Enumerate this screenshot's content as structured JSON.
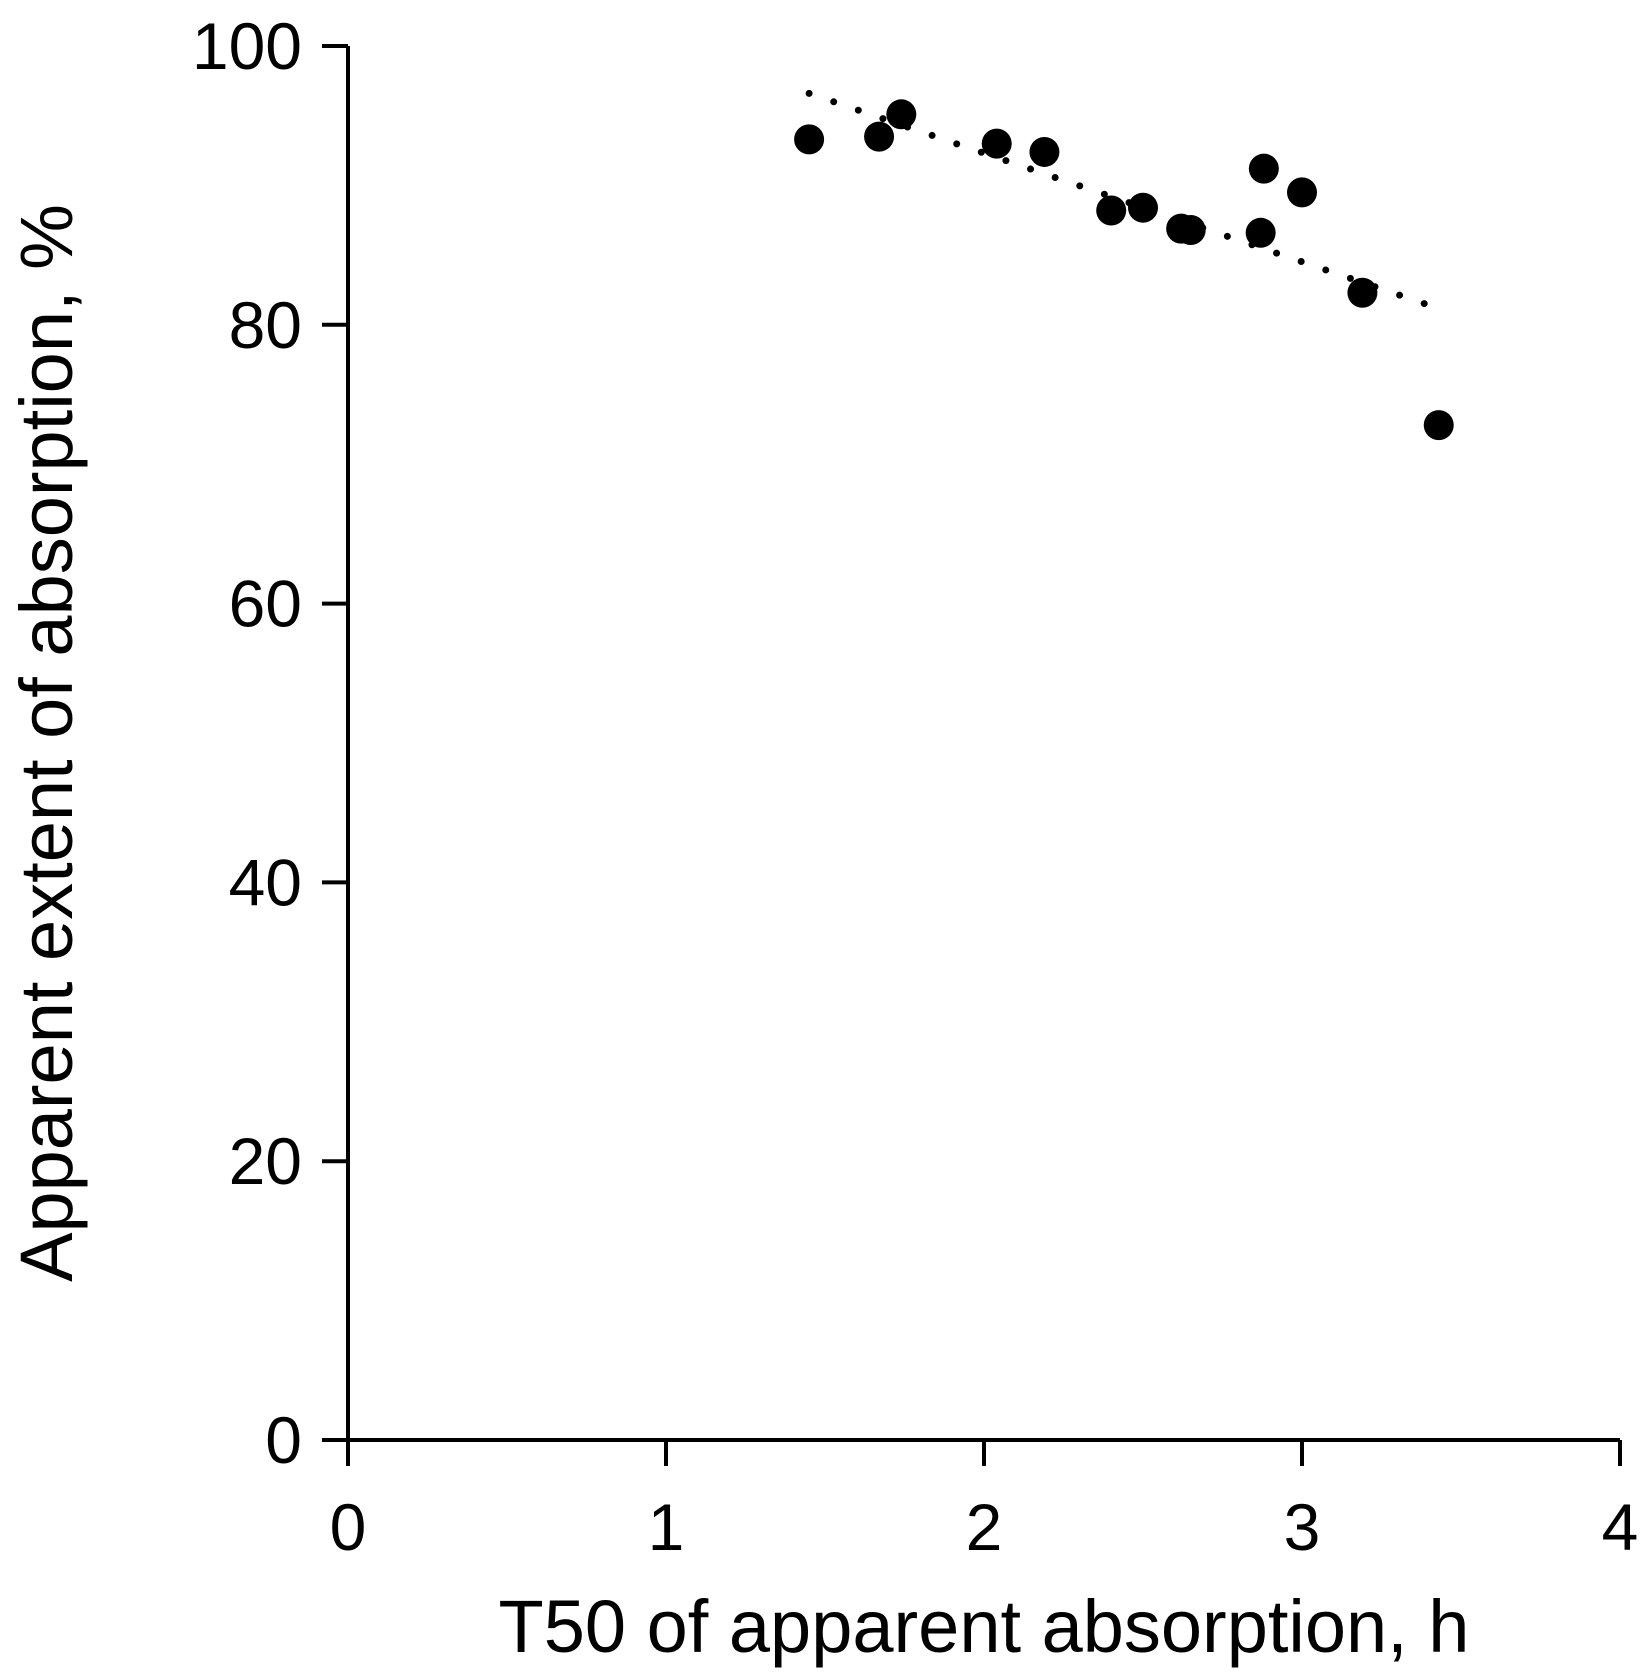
{
  "chart_data": {
    "type": "scatter",
    "title": "",
    "xlabel": "T50 of apparent absorption, h",
    "ylabel": "Apparent extent of absorption, %",
    "xlim": [
      0,
      4
    ],
    "ylim": [
      0,
      100
    ],
    "x_ticks": [
      "0",
      "1",
      "2",
      "3",
      "4"
    ],
    "y_ticks": [
      "0",
      "20",
      "40",
      "60",
      "80",
      "100"
    ],
    "grid": false,
    "legend": "none",
    "series": [
      {
        "points": [
          {
            "x": 1.45,
            "y": 93.3
          },
          {
            "x": 1.67,
            "y": 93.5
          },
          {
            "x": 1.74,
            "y": 95.1
          },
          {
            "x": 2.04,
            "y": 93.0
          },
          {
            "x": 2.19,
            "y": 92.4
          },
          {
            "x": 2.4,
            "y": 88.2
          },
          {
            "x": 2.5,
            "y": 88.4
          },
          {
            "x": 2.62,
            "y": 86.9
          },
          {
            "x": 2.65,
            "y": 86.8
          },
          {
            "x": 2.87,
            "y": 86.6
          },
          {
            "x": 2.88,
            "y": 91.2
          },
          {
            "x": 3.0,
            "y": 89.5
          },
          {
            "x": 3.19,
            "y": 82.3
          },
          {
            "x": 3.43,
            "y": 72.8
          }
        ]
      }
    ],
    "trendline": {
      "style": "dotted",
      "x": [
        1.45,
        3.4
      ],
      "y": [
        96.6,
        81.4
      ]
    }
  }
}
